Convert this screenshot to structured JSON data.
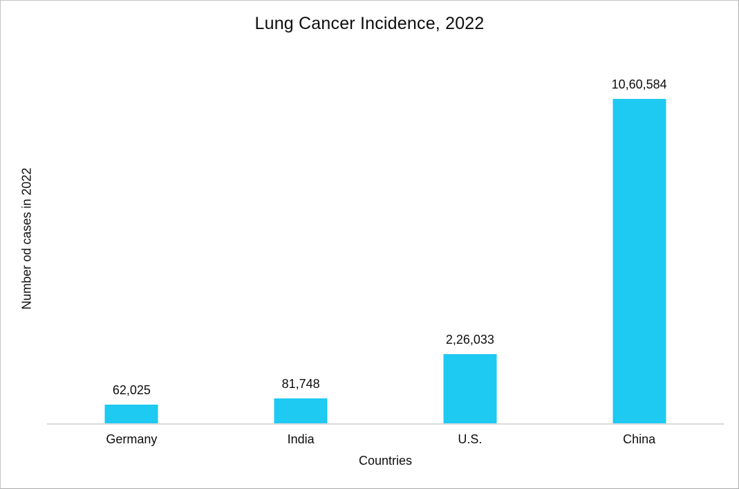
{
  "chart_data": {
    "type": "bar",
    "title": "Lung Cancer Incidence, 2022",
    "xlabel": "Countries",
    "ylabel": "Number od cases in 2022",
    "categories": [
      "Germany",
      "India",
      "U.S.",
      "China"
    ],
    "values": [
      62025,
      81748,
      226033,
      1060584
    ],
    "value_labels": [
      "62,025",
      "81,748",
      "2,26,033",
      "10,60,584"
    ],
    "ylim": [
      0,
      1060584
    ],
    "gridlines": false,
    "legend": "none",
    "y_ticks_visible": false,
    "bar_color": "#1ec9f2",
    "axis_line_color": "#d9d9d9",
    "text_color": "#0d0d0d",
    "border_color": "#c3c3c3"
  }
}
